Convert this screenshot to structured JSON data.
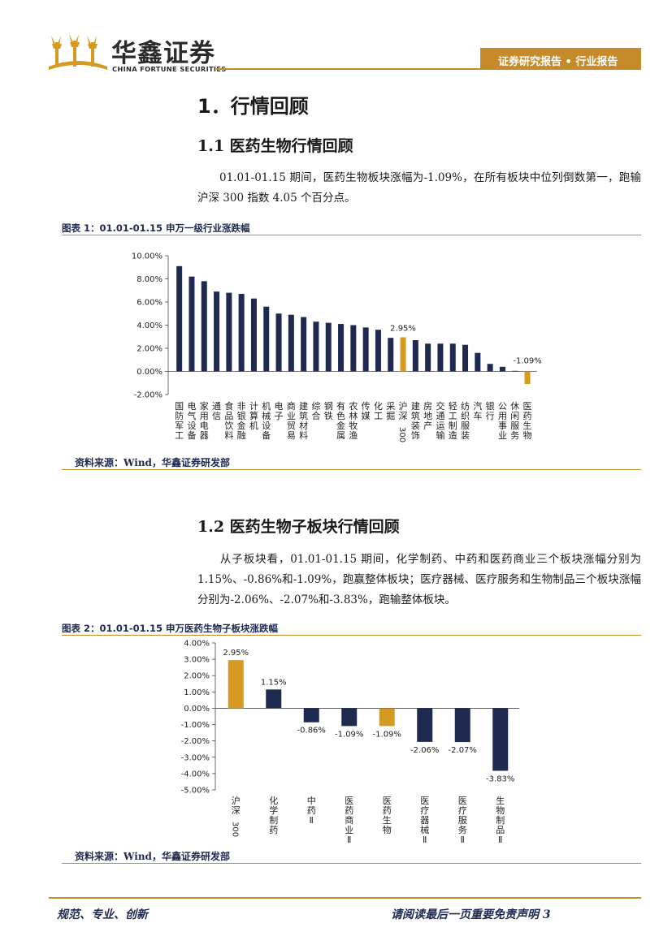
{
  "header": {
    "logo_cn": "华鑫证券",
    "logo_en": "CHINA FORTUNE SECURITIES",
    "tab_text": "证券研究报告 • 行业报告"
  },
  "section": {
    "h1": "1．行情回顾",
    "h1_1": "1.1 医药生物行情回顾",
    "para1": "01.01-01.15 期间，医药生物板块涨幅为-1.09%，在所有板块中位列倒数第一，跑输沪深 300 指数 4.05 个百分点。",
    "h1_2": "1.2 医药生物子板块行情回顾",
    "para2": "从子板块看，01.01-01.15 期间，化学制药、中药和医药商业三个板块涨幅分别为 1.15%、-0.86%和-1.09%，跑赢整体板块；医疗器械、医疗服务和生物制品三个板块涨幅分别为-2.06%、-2.07%和-3.83%，跑输整体板块。"
  },
  "figures": {
    "fig1_title": "图表 1：01.01-01.15 申万一级行业涨跌幅",
    "fig1_source": "资料来源：Wind，华鑫证券研发部",
    "fig2_title": "图表 2：01.01-01.15 申万医药生物子板块涨跌幅",
    "fig2_source": "资料来源：Wind，华鑫证券研发部"
  },
  "footer": {
    "left": "规范、专业、创新",
    "right": "请阅读最后一页重要免责声明 3"
  },
  "colors": {
    "navy": "#1f2a50",
    "gold": "#d59a1f",
    "accent": "#c58a2a"
  },
  "chart_data": [
    {
      "type": "bar",
      "categories": [
        "国防军工",
        "电气设备",
        "家用电器",
        "通信",
        "食品饮料",
        "非银金融",
        "计算机",
        "机械设备",
        "电子",
        "商业贸易",
        "建筑材料",
        "综合",
        "钢铁",
        "有色金属",
        "农林牧渔",
        "传媒",
        "化工",
        "采掘",
        "沪深300",
        "建筑装饰",
        "房地产",
        "交通运输",
        "轻工制造",
        "纺织服装",
        "汽车",
        "银行",
        "公用事业",
        "休闲服务",
        "医药生物"
      ],
      "values": [
        9.1,
        8.2,
        7.8,
        6.9,
        6.8,
        6.7,
        6.3,
        5.6,
        5.0,
        4.9,
        4.7,
        4.3,
        4.2,
        4.1,
        4.0,
        3.8,
        3.6,
        2.9,
        2.95,
        2.7,
        2.4,
        2.4,
        2.4,
        2.3,
        1.6,
        0.65,
        0.4,
        0.05,
        -1.09
      ],
      "highlight": [
        "沪深300",
        "医药生物"
      ],
      "data_labels": {
        "沪深300": "2.95%",
        "医药生物": "-1.09%"
      },
      "yticks": [
        "10.00%",
        "8.00%",
        "6.00%",
        "4.00%",
        "2.00%",
        "0.00%",
        "-2.00%"
      ],
      "ylim": [
        -2,
        10
      ],
      "grid": false
    },
    {
      "type": "bar",
      "categories": [
        "沪深300",
        "化学制药",
        "中药Ⅱ",
        "医药商业Ⅱ",
        "医药生物",
        "医疗器械Ⅱ",
        "医疗服务Ⅱ",
        "生物制品Ⅱ"
      ],
      "values": [
        2.95,
        1.15,
        -0.86,
        -1.09,
        -1.09,
        -2.06,
        -2.07,
        -3.83
      ],
      "data_labels": [
        "2.95%",
        "1.15%",
        "-0.86%",
        "-1.09%",
        "-1.09%",
        "-2.06%",
        "-2.07%",
        "-3.83%"
      ],
      "highlight": [
        "沪深300",
        "医药生物"
      ],
      "yticks": [
        "4.00%",
        "3.00%",
        "2.00%",
        "1.00%",
        "0.00%",
        "-1.00%",
        "-2.00%",
        "-3.00%",
        "-4.00%",
        "-5.00%"
      ],
      "ylim": [
        -5,
        4
      ],
      "grid": false
    }
  ]
}
